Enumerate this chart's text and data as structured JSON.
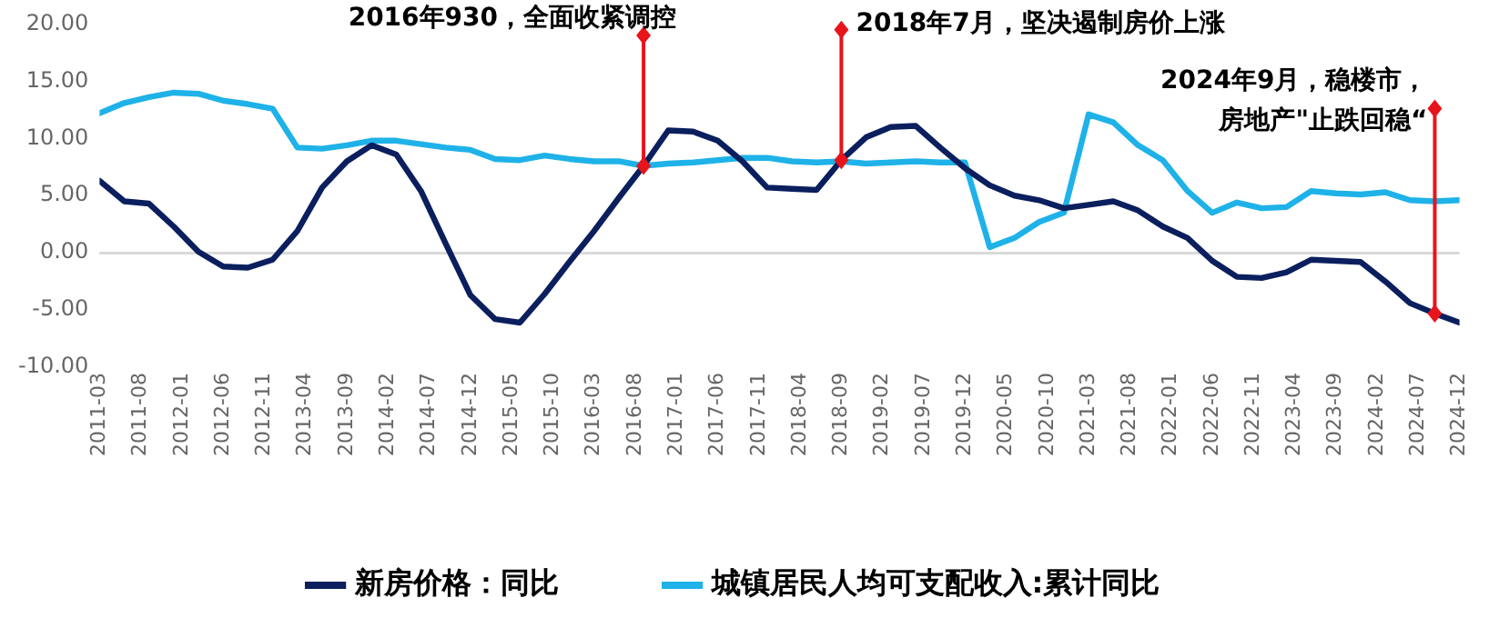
{
  "chart_data": {
    "type": "line",
    "x": [
      "2011-03",
      "2011-06",
      "2011-09",
      "2011-12",
      "2012-03",
      "2012-06",
      "2012-09",
      "2012-12",
      "2013-03",
      "2013-06",
      "2013-09",
      "2013-12",
      "2014-03",
      "2014-06",
      "2014-09",
      "2014-12",
      "2015-03",
      "2015-06",
      "2015-09",
      "2015-12",
      "2016-03",
      "2016-06",
      "2016-09",
      "2016-12",
      "2017-03",
      "2017-06",
      "2017-09",
      "2017-12",
      "2018-03",
      "2018-06",
      "2018-09",
      "2018-12",
      "2019-03",
      "2019-06",
      "2019-09",
      "2019-12",
      "2020-03",
      "2020-06",
      "2020-09",
      "2020-12",
      "2021-03",
      "2021-06",
      "2021-09",
      "2021-12",
      "2022-03",
      "2022-06",
      "2022-09",
      "2022-12",
      "2023-03",
      "2023-06",
      "2023-09",
      "2023-12",
      "2024-03",
      "2024-06",
      "2024-09",
      "2024-12"
    ],
    "series": [
      {
        "name": "新房价格：同比",
        "color": "#0b1f5e",
        "values": [
          6.3,
          4.5,
          4.3,
          2.3,
          0.1,
          -1.2,
          -1.3,
          -0.6,
          1.9,
          5.7,
          8.0,
          9.4,
          8.6,
          5.4,
          0.8,
          -3.7,
          -5.8,
          -6.1,
          -3.6,
          -0.8,
          1.9,
          4.8,
          7.6,
          10.7,
          10.6,
          9.8,
          8.0,
          5.7,
          5.6,
          5.5,
          8.1,
          10.1,
          11.0,
          11.1,
          9.2,
          7.4,
          5.9,
          5.0,
          4.6,
          3.9,
          4.2,
          4.5,
          3.7,
          2.3,
          1.3,
          -0.7,
          -2.1,
          -2.2,
          -1.7,
          -0.6,
          -0.7,
          -0.8,
          -2.5,
          -4.4,
          -5.3,
          -6.1
        ]
      },
      {
        "name": "城镇居民人均可支配收入:累计同比",
        "color": "#1eb2e8",
        "values": [
          12.2,
          13.1,
          13.6,
          14.0,
          13.9,
          13.3,
          13.0,
          12.6,
          9.2,
          9.1,
          9.4,
          9.8,
          9.8,
          9.5,
          9.2,
          9.0,
          8.2,
          8.1,
          8.5,
          8.2,
          8.0,
          8.0,
          7.6,
          7.8,
          7.9,
          8.1,
          8.3,
          8.3,
          8.0,
          7.9,
          8.0,
          7.8,
          7.9,
          8.0,
          7.9,
          7.9,
          0.5,
          1.3,
          2.7,
          3.5,
          12.1,
          11.4,
          9.4,
          8.1,
          5.4,
          3.5,
          4.4,
          3.9,
          4.0,
          5.4,
          5.2,
          5.1,
          5.3,
          4.6,
          4.5,
          4.6
        ]
      }
    ],
    "xlim": [
      "2011-03",
      "2024-12"
    ],
    "xticks": [
      "2011-03",
      "2011-08",
      "2012-01",
      "2012-06",
      "2012-11",
      "2013-04",
      "2013-09",
      "2014-02",
      "2014-07",
      "2014-12",
      "2015-05",
      "2015-10",
      "2016-03",
      "2016-08",
      "2017-01",
      "2017-06",
      "2017-11",
      "2018-04",
      "2018-09",
      "2019-02",
      "2019-07",
      "2019-12",
      "2020-05",
      "2020-10",
      "2021-03",
      "2021-08",
      "2022-01",
      "2022-06",
      "2022-11",
      "2023-04",
      "2023-09",
      "2024-02",
      "2024-07",
      "2024-12"
    ],
    "ylim": [
      -10,
      20
    ],
    "yticks": [
      {
        "value": -10,
        "label": "-10.00"
      },
      {
        "value": -5,
        "label": "-5.00"
      },
      {
        "value": 0,
        "label": "0.00"
      },
      {
        "value": 5,
        "label": "5.00"
      },
      {
        "value": 10,
        "label": "10.00"
      },
      {
        "value": 15,
        "label": "15.00"
      },
      {
        "value": 20,
        "label": "20.00"
      }
    ],
    "annotations": [
      {
        "text": "2016年930，全面收紧调控",
        "x": "2016-09",
        "y": 19.0
      },
      {
        "text": "2018年7月，坚决遏制房价上涨",
        "x": "2018-09",
        "y": 19.5
      },
      {
        "text": "2024年9月，稳楼市，房地产\"止跌回稳“",
        "x": "2024-09",
        "y": 12.6
      }
    ],
    "legend": "bottom",
    "marker": "none",
    "line_style": "solid"
  }
}
